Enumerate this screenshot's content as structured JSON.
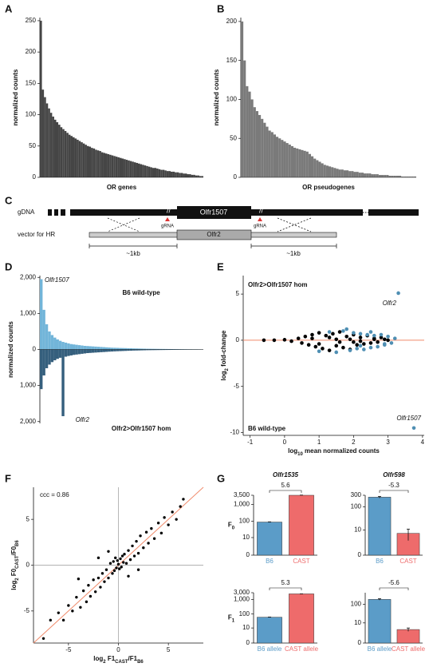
{
  "diagram": {
    "panel": "C",
    "gdna": "gDNA",
    "gene": "Olfr1507",
    "grna": [
      "gRNA",
      "gRNA"
    ],
    "vector": "vector for HR",
    "insert": "Olfr2",
    "arm_lengths": [
      "~1kb",
      "~1kb"
    ]
  },
  "chart_data": [
    {
      "type": "bar",
      "panel": "A",
      "xlabel": "OR genes",
      "ylabel": "normalized counts",
      "color": "#454545",
      "values": [
        250,
        140,
        128,
        118,
        110,
        103,
        97,
        92,
        88,
        84,
        80,
        77,
        74,
        71,
        68,
        66,
        64,
        62,
        60,
        58,
        56,
        54,
        52,
        50,
        49,
        47,
        46,
        44,
        43,
        42,
        40,
        39,
        38,
        37,
        36,
        35,
        34,
        33,
        32,
        31,
        30,
        29,
        28,
        27,
        26,
        25,
        24,
        23,
        22,
        21,
        20,
        19,
        18,
        17,
        16,
        15,
        15,
        14,
        13,
        12,
        12,
        11,
        10,
        10,
        9,
        9,
        8,
        8,
        7,
        7,
        6,
        6,
        5,
        5,
        4,
        4,
        3,
        3,
        2,
        2
      ],
      "ylim": [
        0,
        255
      ],
      "yticks": [
        0,
        50,
        100,
        150,
        200,
        250
      ]
    },
    {
      "type": "bar",
      "panel": "B",
      "xlabel": "OR pseudogenes",
      "ylabel": "normalized counts",
      "color": "#7a7a7a",
      "values": [
        200,
        150,
        117,
        110,
        100,
        90,
        85,
        80,
        75,
        70,
        65,
        60,
        58,
        55,
        52,
        50,
        48,
        46,
        44,
        42,
        40,
        38,
        37,
        36,
        35,
        34,
        33,
        30,
        27,
        24,
        22,
        20,
        18,
        16,
        15,
        14,
        13,
        12,
        11,
        10,
        10,
        9,
        9,
        8,
        8,
        7,
        7,
        6,
        6,
        5,
        5,
        5,
        4,
        4,
        4,
        3,
        3,
        3,
        3,
        2,
        2,
        2,
        2,
        2,
        1,
        1,
        1,
        1,
        1,
        1
      ],
      "ylim": [
        0,
        205
      ],
      "yticks": [
        0,
        50,
        100,
        150,
        200
      ]
    },
    {
      "type": "bar",
      "panel": "D",
      "ylabel": "normalized counts",
      "series": [
        {
          "name": "B6 wild-type",
          "color": "#72b5d9",
          "values": [
            1950,
            1100,
            700,
            500,
            400,
            330,
            280,
            240,
            210,
            190,
            170,
            150,
            140,
            130,
            120,
            110,
            100,
            95,
            90,
            85,
            80,
            75,
            70,
            65,
            60,
            55,
            50,
            48,
            45,
            42,
            40,
            38,
            35,
            33,
            30,
            28,
            26,
            24,
            22,
            20,
            19,
            18,
            17,
            16,
            15,
            14,
            13,
            12,
            11,
            10,
            9,
            8,
            7,
            6,
            5,
            5,
            4,
            4,
            3,
            2
          ]
        },
        {
          "name": "Olfr2>Olfr1507 hom",
          "color": "#355f7d",
          "values": [
            -1100,
            -720,
            -520,
            -420,
            -350,
            -300,
            -260,
            -230,
            -1850,
            -200,
            -180,
            -165,
            -150,
            -140,
            -130,
            -120,
            -110,
            -100,
            -95,
            -90,
            -85,
            -80,
            -75,
            -70,
            -65,
            -60,
            -56,
            -52,
            -48,
            -45,
            -42,
            -39,
            -36,
            -33,
            -30,
            -28,
            -26,
            -24,
            -22,
            -20,
            -19,
            -18,
            -17,
            -16,
            -15,
            -14,
            -13,
            -12,
            -11,
            -10,
            -9,
            -8,
            -7,
            -6,
            -5,
            -5,
            -4,
            -4,
            -3,
            -2
          ]
        }
      ],
      "annotations": [
        "Olfr1507",
        "Olfr2"
      ],
      "ylim": [
        -2050,
        2050
      ],
      "yticks": [
        {
          "value": -2000,
          "label": "2,000"
        },
        {
          "value": -1000,
          "label": "1,000"
        },
        0,
        {
          "value": 1000,
          "label": "1,000"
        },
        {
          "value": 2000,
          "label": "2,000"
        }
      ]
    },
    {
      "type": "scatter",
      "panel": "E",
      "xlabel": [
        "log",
        "10",
        " mean normalized counts"
      ],
      "ylabel": [
        "log",
        "2",
        " fold-change"
      ],
      "annotations": [
        "Olfr2>Olfr1507 hom",
        "B6 wild-type",
        "Olfr2",
        "Olfr1507"
      ],
      "series": [
        {
          "color": "#000000",
          "x": [
            -0.6,
            -0.3,
            0,
            0.2,
            0.4,
            0.5,
            0.6,
            0.7,
            0.8,
            0.9,
            1.0,
            1.1,
            1.2,
            1.3,
            1.4,
            1.5,
            1.6,
            1.7,
            1.8,
            1.9,
            2.0,
            2.1,
            2.2,
            2.3,
            2.4,
            2.5,
            2.6,
            2.7,
            2.8,
            2.9,
            1.0,
            1.3,
            1.6,
            1.9,
            2.2,
            0.8,
            1.5,
            2.0,
            2.6,
            3.0
          ],
          "values": [
            0,
            0,
            0.05,
            -0.1,
            0.2,
            -0.3,
            0.4,
            -0.5,
            0.6,
            -0.7,
            0.8,
            -0.9,
            0.5,
            -1.1,
            0.7,
            -0.6,
            0.9,
            -0.8,
            0.4,
            -1.0,
            0.6,
            -0.5,
            0.3,
            -0.4,
            0.5,
            -0.3,
            0.2,
            -0.2,
            0.3,
            0.1,
            -0.4,
            0.3,
            -0.2,
            0.1,
            -0.1,
            0.2,
            0.1,
            -0.2,
            0.1,
            0
          ]
        },
        {
          "color": "#4f8fb3",
          "x": [
            1.0,
            1.3,
            1.5,
            1.7,
            1.9,
            2.0,
            2.1,
            2.2,
            2.3,
            2.4,
            2.5,
            2.6,
            2.7,
            2.8,
            2.9,
            3.0,
            3.1,
            3.2,
            1.8,
            2.2,
            2.5,
            2.9,
            3.3,
            3.75
          ],
          "values": [
            -1.2,
            0.9,
            -1.3,
            1.0,
            -1.1,
            0.8,
            -0.9,
            0.7,
            -1.0,
            0.6,
            -0.8,
            0.5,
            -0.7,
            0.6,
            -0.5,
            0.4,
            -0.3,
            0.2,
            1.2,
            -0.6,
            0.9,
            -0.4,
            5.1,
            -9.5
          ]
        }
      ],
      "hline": 0,
      "line_color": "#f08a6a",
      "xlim": [
        -1.2,
        4.05
      ],
      "xticks": [
        -1,
        0,
        1,
        2,
        3,
        4
      ],
      "ylim": [
        -10.3,
        7
      ],
      "yticks": [
        -10,
        -5,
        0,
        5
      ]
    },
    {
      "type": "scatter",
      "panel": "F",
      "xlabel": [
        "log",
        "2",
        " F1",
        "CAST",
        "/F1",
        "B6"
      ],
      "ylabel": [
        "log",
        "2",
        " F0",
        "CAST",
        "/F0",
        "B6"
      ],
      "annotations": [
        "ccc = 0.86"
      ],
      "series": [
        {
          "color": "#000000",
          "x": [
            -7.5,
            -6.8,
            -6,
            -5.5,
            -5,
            -4.6,
            -4.2,
            -3.8,
            -3.5,
            -3.2,
            -3,
            -2.8,
            -2.5,
            -2.3,
            -2,
            -1.8,
            -1.6,
            -1.4,
            -1.2,
            -1,
            -0.8,
            -0.6,
            -0.5,
            -0.4,
            -0.3,
            -0.2,
            -0.1,
            0,
            0.1,
            0.2,
            0.3,
            0.4,
            0.5,
            0.6,
            0.8,
            1,
            1.2,
            1.4,
            1.6,
            1.8,
            2,
            2.2,
            2.5,
            2.8,
            3,
            3.3,
            3.6,
            4,
            4.3,
            4.6,
            5,
            5.4,
            5.8,
            6.2,
            6.5,
            -2,
            -1,
            1,
            2,
            -4
          ],
          "values": [
            -8,
            -6,
            -5.2,
            -6,
            -4.4,
            -5,
            -3.5,
            -4.6,
            -2.8,
            -4,
            -2.2,
            -3.4,
            -1.6,
            -2.9,
            -1.4,
            -2.4,
            -0.9,
            -1.8,
            -0.5,
            -1.4,
            0.2,
            -0.9,
            0.4,
            -0.6,
            0.8,
            -0.3,
            0.5,
            0.1,
            -0.4,
            0.7,
            -0.2,
            1.0,
            0.3,
            1.2,
            0.2,
            1.6,
            0.6,
            2.1,
            1.0,
            2.6,
            1.3,
            3.2,
            1.9,
            3.6,
            2.4,
            4.0,
            2.9,
            4.6,
            3.5,
            5.2,
            4.4,
            5.8,
            5.0,
            6.4,
            7.2,
            0.8,
            1.5,
            -1.2,
            -0.5,
            -1.5
          ]
        }
      ],
      "hline": 0,
      "vline": 0,
      "diagonal": true,
      "line_color": "#f08a6a",
      "xlim": [
        -8.5,
        8.5
      ],
      "xticks": [
        -5,
        0,
        5
      ],
      "ylim": [
        -8.5,
        8.5
      ],
      "yticks": [
        -5,
        0,
        5
      ]
    },
    {
      "type": "bar",
      "panel": "G",
      "title": "Olfr1535",
      "row_label": [
        "F",
        "0"
      ],
      "log_scale": true,
      "categories": [
        "B6",
        "CAST"
      ],
      "colors": [
        "#5b9cc8",
        "#ee6b6b"
      ],
      "values": [
        90,
        3500
      ],
      "errors": [
        3,
        80
      ],
      "fold_change": 5.6,
      "ylim": [
        0,
        3500
      ],
      "yticks": [
        0,
        10,
        100,
        {
          "value": 1000,
          "label": "1,000"
        },
        {
          "value": 3500,
          "label": "3,500"
        }
      ]
    },
    {
      "type": "bar",
      "title": "Olfr598",
      "log_scale": true,
      "categories": [
        "B6",
        "CAST"
      ],
      "colors": [
        "#5b9cc8",
        "#ee6b6b"
      ],
      "values": [
        250,
        7
      ],
      "errors": [
        20,
        4
      ],
      "fold_change": -5.3,
      "ylim": [
        0,
        300
      ],
      "yticks": [
        0,
        10,
        100,
        300
      ]
    },
    {
      "type": "bar",
      "row_label": [
        "F",
        "1"
      ],
      "log_scale": true,
      "categories": [
        "B6 allele",
        "CAST allele"
      ],
      "colors": [
        "#5b9cc8",
        "#ee6b6b"
      ],
      "values": [
        60,
        2500
      ],
      "errors": [
        2,
        30
      ],
      "fold_change": 5.3,
      "ylim": [
        0,
        3000
      ],
      "yticks": [
        0,
        10,
        100,
        {
          "value": 1000,
          "label": "1,000"
        },
        {
          "value": 3000,
          "label": "3,000"
        }
      ]
    },
    {
      "type": "bar",
      "log_scale": true,
      "categories": [
        "B6 allele",
        "CAST allele"
      ],
      "colors": [
        "#5b9cc8",
        "#ee6b6b"
      ],
      "values": [
        180,
        4
      ],
      "errors": [
        15,
        1
      ],
      "fold_change": -5.6,
      "ylim": [
        0,
        400
      ],
      "yticks": [
        0,
        10,
        100
      ]
    }
  ]
}
